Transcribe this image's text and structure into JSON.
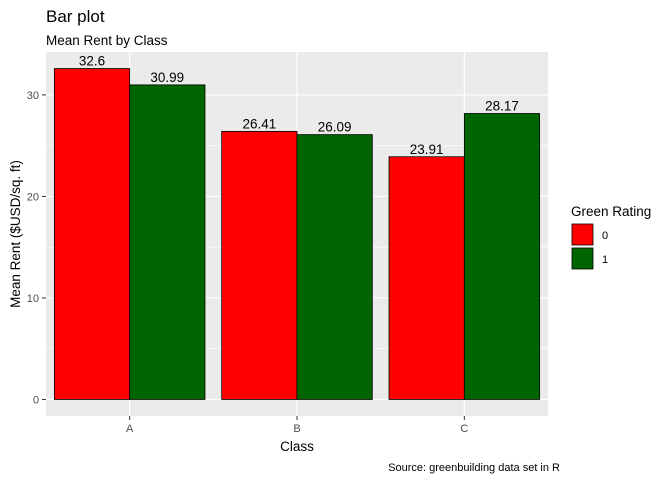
{
  "chart_data": {
    "type": "bar",
    "title": "Bar plot",
    "subtitle": "Mean Rent by Class",
    "xlabel": "Class",
    "ylabel": "Mean Rent ($USD/sq. ft)",
    "caption": "Source: greenbuilding data set in R",
    "categories": [
      "A",
      "B",
      "C"
    ],
    "series": [
      {
        "name": "0",
        "color": "#ff0000",
        "values": [
          32.6,
          26.41,
          23.91
        ],
        "labels": [
          "32.6",
          "26.41",
          "23.91"
        ]
      },
      {
        "name": "1",
        "color": "#006400",
        "values": [
          30.99,
          26.09,
          28.17
        ],
        "labels": [
          "30.99",
          "26.09",
          "28.17"
        ]
      }
    ],
    "ylim": [
      -1.63,
      34.23
    ],
    "yticks": [
      0,
      10,
      20,
      30
    ],
    "yticklabels": [
      "0",
      "10",
      "20",
      "30"
    ],
    "legend": {
      "title": "Green Rating",
      "position": "right"
    },
    "grid": true,
    "panel_background": "#ebebeb",
    "grid_color": "#ffffff"
  }
}
